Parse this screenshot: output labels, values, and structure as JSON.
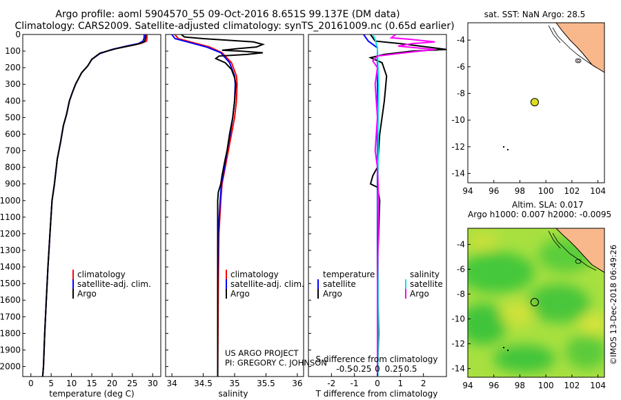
{
  "header": {
    "title_line1": "Argo profile: aoml 5904570_55 09-Oct-2016 8.651S 99.137E (DM data)",
    "title_line2": "Climatology: CARS2009. Satellite-adjusted climatology: synTS_20161009.nc (0.65d earlier)"
  },
  "colors": {
    "climatology": "#ff0000",
    "satellite": "#0000ff",
    "argo": "#000000",
    "sat_salinity": "#00e5ee",
    "clim_salinity": "#ff00ff",
    "land": "#f8b88b",
    "float_marker": "#dddd22"
  },
  "depth_axis": {
    "ticks": [
      "0",
      "100",
      "200",
      "300",
      "400",
      "500",
      "600",
      "700",
      "800",
      "900",
      "1000",
      "1100",
      "1200",
      "1300",
      "1400",
      "1500",
      "1600",
      "1700",
      "1800",
      "1900",
      "2000"
    ]
  },
  "chart_data": [
    {
      "type": "line",
      "name": "temperature-panel",
      "xlabel": "temperature (deg C)",
      "ylabel": "depth",
      "xlim": [
        -2,
        32
      ],
      "ylim": [
        2060,
        0
      ],
      "xticks": [
        "0",
        "5",
        "10",
        "15",
        "20",
        "25",
        "30"
      ],
      "legend": [
        "climatology",
        "satellite-adj. clim.",
        "Argo"
      ],
      "series": [
        {
          "name": "climatology",
          "color": "#ff0000",
          "points": [
            [
              28.6,
              0
            ],
            [
              28.6,
              20
            ],
            [
              28.5,
              40
            ],
            [
              27,
              55
            ],
            [
              24,
              70
            ],
            [
              20,
              90
            ],
            [
              17,
              115
            ],
            [
              15,
              150
            ],
            [
              14,
              190
            ],
            [
              12.5,
              230
            ],
            [
              11,
              300
            ],
            [
              10.2,
              350
            ],
            [
              9.5,
              400
            ],
            [
              8.8,
              480
            ],
            [
              8,
              550
            ],
            [
              7.3,
              650
            ],
            [
              6.5,
              750
            ],
            [
              5.8,
              900
            ],
            [
              5.2,
              1000
            ],
            [
              4.7,
              1200
            ],
            [
              4.2,
              1400
            ],
            [
              3.8,
              1600
            ],
            [
              3.4,
              1800
            ],
            [
              3.1,
              2000
            ],
            [
              2.9,
              2060
            ]
          ]
        },
        {
          "name": "satellite-adj. clim.",
          "color": "#0000ff",
          "points": [
            [
              27.9,
              0
            ],
            [
              27.9,
              20
            ],
            [
              27.6,
              40
            ],
            [
              26.5,
              55
            ],
            [
              23.5,
              70
            ],
            [
              20,
              90
            ],
            [
              17,
              115
            ],
            [
              15,
              150
            ],
            [
              14,
              190
            ],
            [
              12.5,
              230
            ],
            [
              11,
              300
            ],
            [
              10.2,
              350
            ],
            [
              9.5,
              400
            ],
            [
              8.8,
              480
            ],
            [
              8,
              550
            ],
            [
              7.3,
              650
            ],
            [
              6.5,
              750
            ],
            [
              5.8,
              900
            ],
            [
              5.2,
              1000
            ],
            [
              4.7,
              1200
            ],
            [
              4.2,
              1400
            ],
            [
              3.8,
              1600
            ],
            [
              3.4,
              1800
            ],
            [
              3.1,
              2000
            ],
            [
              2.9,
              2060
            ]
          ]
        },
        {
          "name": "Argo",
          "color": "#000000",
          "points": [
            [
              28.3,
              0
            ],
            [
              28.3,
              15
            ],
            [
              28.1,
              35
            ],
            [
              27.9,
              45
            ],
            [
              26,
              60
            ],
            [
              21,
              85
            ],
            [
              17,
              112
            ],
            [
              15,
              150
            ],
            [
              14,
              190
            ],
            [
              12.5,
              230
            ],
            [
              11,
              300
            ],
            [
              10.2,
              350
            ],
            [
              9.5,
              400
            ],
            [
              8.8,
              480
            ],
            [
              8,
              550
            ],
            [
              7.3,
              650
            ],
            [
              6.5,
              750
            ],
            [
              5.8,
              900
            ],
            [
              5.2,
              1000
            ],
            [
              4.7,
              1200
            ],
            [
              4.2,
              1400
            ],
            [
              3.8,
              1600
            ],
            [
              3.4,
              1800
            ],
            [
              3.1,
              2000
            ],
            [
              2.9,
              2060
            ]
          ]
        }
      ]
    },
    {
      "type": "line",
      "name": "salinity-panel",
      "xlabel": "salinity",
      "xlim": [
        33.9,
        36.1
      ],
      "ylim": [
        2060,
        0
      ],
      "xticks": [
        "34",
        "34.5",
        "35",
        "35.5",
        "36"
      ],
      "legend": [
        "climatology",
        "satellite-adj. clim.",
        "Argo"
      ],
      "series": [
        {
          "name": "climatology",
          "color": "#ff0000",
          "points": [
            [
              34.05,
              0
            ],
            [
              34.1,
              25
            ],
            [
              34.3,
              45
            ],
            [
              34.6,
              75
            ],
            [
              34.8,
              110
            ],
            [
              34.95,
              170
            ],
            [
              35.03,
              250
            ],
            [
              35.04,
              300
            ],
            [
              35.03,
              400
            ],
            [
              35.0,
              500
            ],
            [
              34.95,
              600
            ],
            [
              34.9,
              700
            ],
            [
              34.85,
              800
            ],
            [
              34.8,
              900
            ],
            [
              34.78,
              1000
            ],
            [
              34.75,
              1200
            ],
            [
              34.74,
              1500
            ],
            [
              34.73,
              2060
            ]
          ]
        },
        {
          "name": "satellite-adj. clim.",
          "color": "#0000ff",
          "points": [
            [
              34.0,
              0
            ],
            [
              34.05,
              25
            ],
            [
              34.25,
              45
            ],
            [
              34.55,
              75
            ],
            [
              34.78,
              110
            ],
            [
              34.92,
              170
            ],
            [
              35.0,
              250
            ],
            [
              35.01,
              300
            ],
            [
              35.0,
              400
            ],
            [
              34.97,
              500
            ],
            [
              34.93,
              600
            ],
            [
              34.88,
              700
            ],
            [
              34.84,
              800
            ],
            [
              34.79,
              900
            ],
            [
              34.77,
              1000
            ],
            [
              34.74,
              1200
            ],
            [
              34.73,
              1500
            ],
            [
              34.73,
              2060
            ]
          ]
        },
        {
          "name": "Argo",
          "color": "#000000",
          "points": [
            [
              34.15,
              0
            ],
            [
              34.2,
              15
            ],
            [
              34.5,
              25
            ],
            [
              34.9,
              35
            ],
            [
              35.3,
              45
            ],
            [
              35.45,
              60
            ],
            [
              35.35,
              75
            ],
            [
              35.05,
              85
            ],
            [
              34.8,
              95
            ],
            [
              35.1,
              100
            ],
            [
              35.45,
              110
            ],
            [
              35.2,
              120
            ],
            [
              34.75,
              130
            ],
            [
              34.7,
              145
            ],
            [
              34.85,
              170
            ],
            [
              34.95,
              210
            ],
            [
              35.0,
              260
            ],
            [
              35.02,
              300
            ],
            [
              35.0,
              400
            ],
            [
              34.97,
              500
            ],
            [
              34.92,
              600
            ],
            [
              34.88,
              700
            ],
            [
              34.85,
              750
            ],
            [
              34.8,
              850
            ],
            [
              34.78,
              900
            ],
            [
              34.74,
              950
            ],
            [
              34.73,
              1000
            ],
            [
              34.73,
              1500
            ],
            [
              34.73,
              2060
            ]
          ]
        }
      ]
    },
    {
      "type": "line",
      "name": "difference-panel",
      "xlabel": "T difference from climatology",
      "xlabel2": "S difference from climatology",
      "xlim": [
        -3,
        3
      ],
      "ylim": [
        2060,
        0
      ],
      "xticks": [
        "-2",
        "-1",
        "0",
        "1",
        "2"
      ],
      "xticks2": [
        "-0.5",
        "-0.25",
        "0",
        "0.25",
        "0.5"
      ],
      "legend_t": {
        "title": "temperature",
        "entries": [
          "satellite",
          "Argo"
        ]
      },
      "legend_s": {
        "title": "salinity",
        "entries": [
          "satellite",
          "Argo"
        ]
      },
      "series": [
        {
          "name": "T satellite",
          "color": "#0000ff",
          "points": [
            [
              -0.6,
              0
            ],
            [
              -0.4,
              40
            ],
            [
              0,
              80
            ],
            [
              0,
              300
            ],
            [
              0,
              2060
            ]
          ]
        },
        {
          "name": "T Argo",
          "color": "#000000",
          "points": [
            [
              -0.3,
              0
            ],
            [
              -0.2,
              20
            ],
            [
              -0.1,
              40
            ],
            [
              1,
              55
            ],
            [
              3,
              90
            ],
            [
              1.5,
              100
            ],
            [
              0.3,
              120
            ],
            [
              -0.3,
              140
            ],
            [
              0.2,
              170
            ],
            [
              0.4,
              250
            ],
            [
              0.3,
              400
            ],
            [
              0.2,
              500
            ],
            [
              0.1,
              600
            ],
            [
              0,
              800
            ],
            [
              -0.2,
              850
            ],
            [
              -0.3,
              900
            ],
            [
              0,
              920
            ],
            [
              0.1,
              1000
            ],
            [
              0.05,
              1200
            ],
            [
              0,
              1400
            ],
            [
              0.05,
              1800
            ],
            [
              0,
              2060
            ]
          ]
        },
        {
          "name": "S satellite",
          "color": "#00e5ee",
          "points": [
            [
              -0.2,
              0
            ],
            [
              -0.1,
              30
            ],
            [
              0,
              80
            ],
            [
              0.05,
              300
            ],
            [
              0.03,
              500
            ],
            [
              0.02,
              1000
            ],
            [
              0.03,
              1500
            ],
            [
              0.02,
              2060
            ]
          ]
        },
        {
          "name": "S Argo",
          "color": "#ff00ff",
          "points": [
            [
              0.8,
              0
            ],
            [
              0.6,
              20
            ],
            [
              1.5,
              30
            ],
            [
              2.5,
              45
            ],
            [
              1.5,
              55
            ],
            [
              0.9,
              70
            ],
            [
              2.5,
              90
            ],
            [
              1.2,
              110
            ],
            [
              0,
              130
            ],
            [
              -0.2,
              160
            ],
            [
              0,
              200
            ],
            [
              -0.1,
              300
            ],
            [
              0,
              500
            ],
            [
              -0.1,
              700
            ],
            [
              0,
              800
            ],
            [
              0.05,
              1000
            ],
            [
              0,
              1500
            ],
            [
              0,
              2060
            ]
          ]
        }
      ]
    }
  ],
  "maps": {
    "sst": {
      "title": "sat. SST: NaN Argo: 28.5",
      "xticks": [
        "94",
        "96",
        "98",
        "100",
        "102",
        "104"
      ],
      "yticks": [
        "-4",
        "-6",
        "-8",
        "-10",
        "-12",
        "-14"
      ],
      "float_lon": 99.137,
      "float_lat": -8.651
    },
    "sla": {
      "title_line1": "Altim. SLA: 0.017",
      "title_line2": "Argo h1000: 0.007 h2000: -0.0095",
      "xticks": [
        "94",
        "96",
        "98",
        "100",
        "102",
        "104"
      ],
      "yticks": [
        "-4",
        "-6",
        "-8",
        "-10",
        "-12",
        "-14"
      ],
      "float_lon": 99.137,
      "float_lat": -8.651
    }
  },
  "credits": {
    "project": "US ARGO PROJECT",
    "pi": "PI: GREGORY C. JOHNSON",
    "imos": "©IMOS 13-Dec-2018 06:49:26"
  }
}
